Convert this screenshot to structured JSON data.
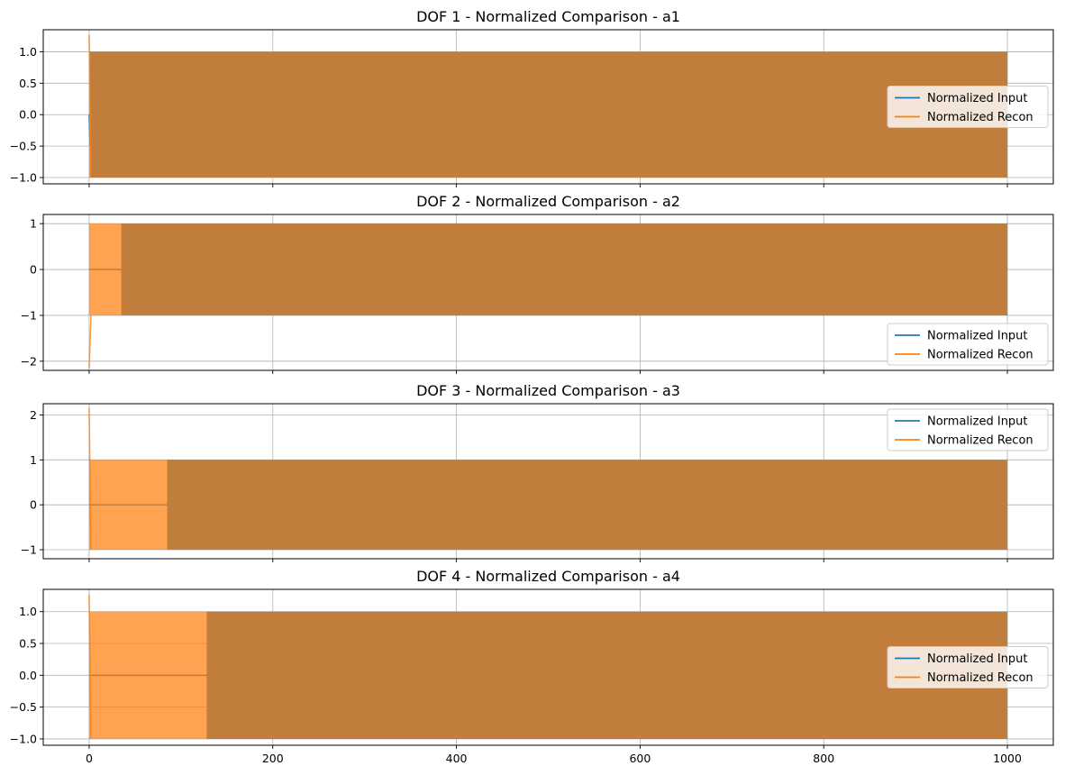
{
  "chart_data": [
    {
      "type": "line",
      "title": "DOF 1 - Normalized Comparison - a1",
      "xlim": [
        -50,
        1050
      ],
      "ylim": [
        -1.1,
        1.35
      ],
      "xticks": [
        0,
        200,
        400,
        600,
        800,
        1000
      ],
      "yticks": [
        -1.0,
        -0.5,
        0.0,
        0.5,
        1.0
      ],
      "ytick_labels": [
        "−1.0",
        "−0.5",
        "0.0",
        "0.5",
        "1.0"
      ],
      "show_xtick_labels": false,
      "grid": true,
      "legend_position": "center-right",
      "series": [
        {
          "name": "Normalized Input",
          "color": "#1f77b4",
          "amplitude": 1.0,
          "onset": 1,
          "start_dip": -0.5
        },
        {
          "name": "Normalized Recon",
          "color": "#ff7f0e",
          "amplitude": 1.0,
          "start_value": 1.27,
          "onset": 0
        }
      ]
    },
    {
      "type": "line",
      "title": "DOF 2 - Normalized Comparison - a2",
      "xlim": [
        -50,
        1050
      ],
      "ylim": [
        -2.2,
        1.2
      ],
      "xticks": [
        0,
        200,
        400,
        600,
        800,
        1000
      ],
      "yticks": [
        -2,
        -1,
        0,
        1
      ],
      "ytick_labels": [
        "−2",
        "−1",
        "0",
        "1"
      ],
      "show_xtick_labels": false,
      "grid": true,
      "legend_position": "lower-right",
      "series": [
        {
          "name": "Normalized Input",
          "color": "#1f77b4",
          "amplitude": 1.0,
          "onset": 35
        },
        {
          "name": "Normalized Recon",
          "color": "#ff7f0e",
          "amplitude": 1.0,
          "start_value": -2.15,
          "onset": 0
        }
      ]
    },
    {
      "type": "line",
      "title": "DOF 3 - Normalized Comparison - a3",
      "xlim": [
        -50,
        1050
      ],
      "ylim": [
        -1.2,
        2.25
      ],
      "xticks": [
        0,
        200,
        400,
        600,
        800,
        1000
      ],
      "yticks": [
        -1,
        0,
        1,
        2
      ],
      "ytick_labels": [
        "−1",
        "0",
        "1",
        "2"
      ],
      "show_xtick_labels": false,
      "grid": true,
      "legend_position": "upper-right",
      "series": [
        {
          "name": "Normalized Input",
          "color": "#1f77b4",
          "amplitude": 1.0,
          "onset": 85
        },
        {
          "name": "Normalized Recon",
          "color": "#ff7f0e",
          "amplitude": 1.0,
          "start_value": 2.15,
          "onset": 0
        }
      ]
    },
    {
      "type": "line",
      "title": "DOF 4 - Normalized Comparison - a4",
      "xlim": [
        -50,
        1050
      ],
      "ylim": [
        -1.1,
        1.35
      ],
      "xticks": [
        0,
        200,
        400,
        600,
        800,
        1000
      ],
      "xtick_labels": [
        "0",
        "200",
        "400",
        "600",
        "800",
        "1000"
      ],
      "yticks": [
        -1.0,
        -0.5,
        0.0,
        0.5,
        1.0
      ],
      "ytick_labels": [
        "−1.0",
        "−0.5",
        "0.0",
        "0.5",
        "1.0"
      ],
      "show_xtick_labels": true,
      "grid": true,
      "legend_position": "center-right",
      "series": [
        {
          "name": "Normalized Input",
          "color": "#1f77b4",
          "amplitude": 1.0,
          "onset": 128
        },
        {
          "name": "Normalized Recon",
          "color": "#ff7f0e",
          "amplitude": 1.0,
          "start_value": 1.27,
          "onset": 0
        }
      ]
    }
  ]
}
